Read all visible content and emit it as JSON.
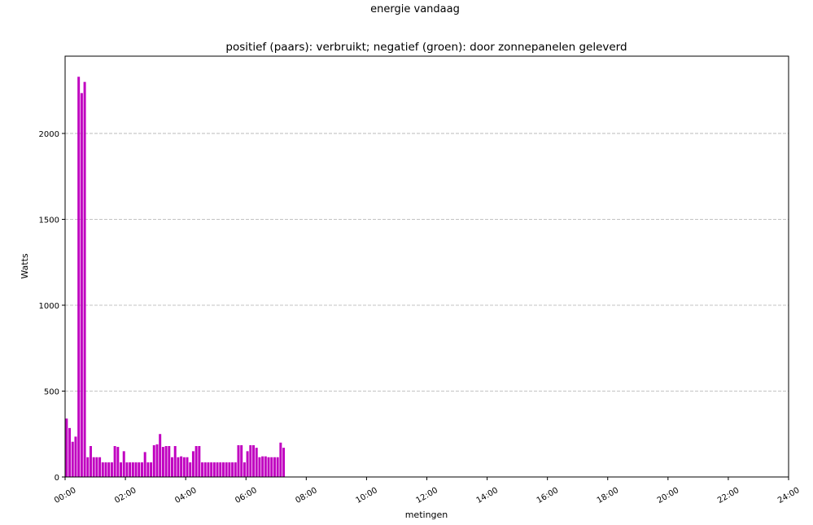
{
  "figure": {
    "suptitle": "energie vandaag",
    "title": "positief (paars): verbruikt; negatief (groen): door zonnepanelen geleverd"
  },
  "chart_data": {
    "type": "bar",
    "title": "positief (paars): verbruikt; negatief (groen): door zonnepanelen geleverd",
    "xlabel": "metingen",
    "ylabel": "Watts",
    "xlim": [
      "00:00",
      "24:00"
    ],
    "ylim": [
      0,
      2450
    ],
    "x_ticks": [
      "00:00",
      "02:00",
      "04:00",
      "06:00",
      "08:00",
      "10:00",
      "12:00",
      "14:00",
      "16:00",
      "18:00",
      "20:00",
      "22:00",
      "24:00"
    ],
    "y_ticks": [
      0,
      500,
      1000,
      1500,
      2000
    ],
    "grid": "y-dashed",
    "colors": {
      "positive": "#c000c0",
      "negative": "#2ca02c",
      "grid": "#b0b0b0"
    },
    "series": [
      {
        "x": [
          "00:00",
          "00:06",
          "00:12",
          "00:18",
          "00:24",
          "00:30",
          "00:36",
          "00:42",
          "00:48",
          "00:54",
          "01:00",
          "01:06",
          "01:12",
          "01:18",
          "01:24",
          "01:30",
          "01:36",
          "01:42",
          "01:48",
          "01:54",
          "02:00",
          "02:06",
          "02:12",
          "02:18",
          "02:24",
          "02:30",
          "02:36",
          "02:42",
          "02:48",
          "02:54",
          "03:00",
          "03:06",
          "03:12",
          "03:18",
          "03:24",
          "03:30",
          "03:36",
          "03:42",
          "03:48",
          "03:54",
          "04:00",
          "04:06",
          "04:12",
          "04:18",
          "04:24",
          "04:30",
          "04:36",
          "04:42",
          "04:48",
          "04:54",
          "05:00",
          "05:06",
          "05:12",
          "05:18",
          "05:24",
          "05:30",
          "05:36",
          "05:42",
          "05:48",
          "05:54",
          "06:00",
          "06:06",
          "06:12",
          "06:18",
          "06:24",
          "06:30",
          "06:36",
          "06:42",
          "06:48",
          "06:54",
          "07:00",
          "07:06",
          "07:12"
        ],
        "values": [
          340,
          285,
          205,
          235,
          2330,
          2235,
          2300,
          115,
          180,
          115,
          115,
          115,
          85,
          85,
          85,
          85,
          180,
          175,
          85,
          150,
          85,
          85,
          85,
          85,
          85,
          85,
          145,
          85,
          85,
          185,
          190,
          250,
          175,
          180,
          180,
          115,
          180,
          115,
          120,
          115,
          115,
          85,
          150,
          180,
          180,
          85,
          85,
          85,
          85,
          85,
          85,
          85,
          85,
          85,
          85,
          85,
          85,
          185,
          185,
          85,
          150,
          185,
          185,
          170,
          115,
          120,
          120,
          115,
          115,
          115,
          115,
          200,
          170
        ]
      }
    ]
  }
}
